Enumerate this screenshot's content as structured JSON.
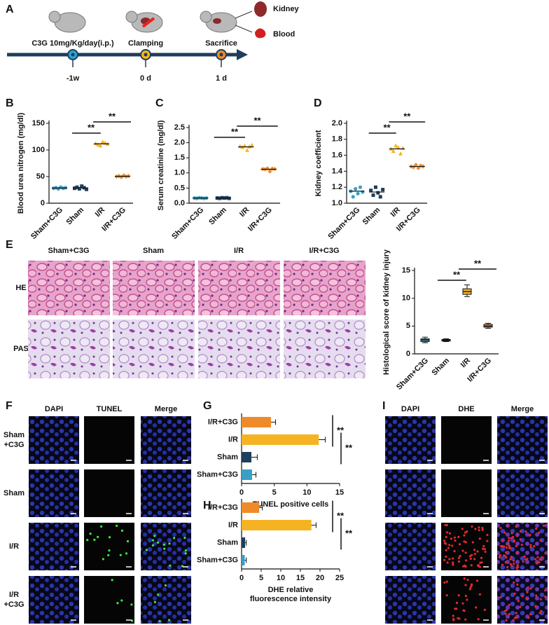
{
  "panel_labels": [
    "A",
    "B",
    "C",
    "D",
    "E",
    "F",
    "G",
    "H",
    "I"
  ],
  "timeline": {
    "steps": [
      {
        "label": "C3G 10mg/Kg/day(i.p.)",
        "time": "-1w"
      },
      {
        "label": "Clamping",
        "time": "0 d"
      },
      {
        "label": "Sacrifice",
        "time": "1 d"
      }
    ],
    "samples": [
      "Kidney",
      "Blood"
    ]
  },
  "histology": {
    "columns": [
      "Sham+C3G",
      "Sham",
      "I/R",
      "I/R+C3G"
    ],
    "rows": [
      "HE",
      "PAS"
    ]
  },
  "tunel_images": {
    "columns": [
      "DAPI",
      "TUNEL",
      "Merge"
    ],
    "rows": [
      [
        "Sham",
        "+C3G"
      ],
      [
        "Sham"
      ],
      [
        "I/R"
      ],
      [
        "I/R",
        "+C3G"
      ]
    ]
  },
  "dhe_images": {
    "columns": [
      "DAPI",
      "DHE",
      "Merge"
    ]
  },
  "chart_data": [
    {
      "type": "dot",
      "ylabel": "Blood urea nitrogen (mg/dl)",
      "categories": [
        "Sham+C3G",
        "Sham",
        "I/R",
        "I/R+C3G"
      ],
      "colors": [
        "#3a9fc4",
        "#1e3f5c",
        "#f5b324",
        "#ef8a2b"
      ],
      "points": [
        [
          28,
          29,
          27,
          30,
          28,
          29
        ],
        [
          28,
          30,
          27,
          32,
          29,
          26
        ],
        [
          112,
          110,
          108,
          115,
          113,
          111
        ],
        [
          50,
          51,
          49,
          52,
          50,
          51
        ]
      ],
      "means": [
        28.5,
        28.7,
        111.5,
        50.5
      ],
      "ylim": [
        0,
        150
      ],
      "yticks": [
        0,
        50,
        100,
        150
      ],
      "annotations": [
        "**",
        "**"
      ]
    },
    {
      "type": "dot",
      "ylabel": "Serum creatinine (mg/dl)",
      "categories": [
        "Sham+C3G",
        "Sham",
        "I/R",
        "I/R+C3G"
      ],
      "colors": [
        "#3a9fc4",
        "#1e3f5c",
        "#f5b324",
        "#ef8a2b"
      ],
      "points": [
        [
          0.17,
          0.16,
          0.18,
          0.17,
          0.16,
          0.17
        ],
        [
          0.17,
          0.16,
          0.18,
          0.17,
          0.18,
          0.16
        ],
        [
          1.88,
          1.85,
          1.9,
          1.75,
          1.87,
          1.92
        ],
        [
          1.13,
          1.12,
          1.15,
          1.05,
          1.14,
          1.13
        ]
      ],
      "means": [
        0.17,
        0.17,
        1.86,
        1.12
      ],
      "ylim": [
        0,
        2.5
      ],
      "yticks": [
        {
          "value": 0,
          "label": "0.0"
        },
        0.5,
        {
          "value": 1,
          "label": "1.0"
        },
        1.5,
        {
          "value": 2,
          "label": "2.0"
        },
        2.5
      ],
      "annotations": [
        "**",
        "**"
      ]
    },
    {
      "type": "dot",
      "ylabel": "Kidney coefficient",
      "categories": [
        "Sham+C3G",
        "Sham",
        "I/R",
        "I/R+C3G"
      ],
      "colors": [
        "#3a9fc4",
        "#1e3f5c",
        "#f5b324",
        "#ef8a2b"
      ],
      "points": [
        [
          1.15,
          1.08,
          1.18,
          1.12,
          1.2,
          1.14
        ],
        [
          1.16,
          1.1,
          1.2,
          1.13,
          1.08,
          1.17
        ],
        [
          1.68,
          1.65,
          1.72,
          1.7,
          1.62,
          1.69
        ],
        [
          1.46,
          1.45,
          1.48,
          1.44,
          1.47,
          1.46
        ]
      ],
      "means": [
        1.15,
        1.14,
        1.68,
        1.46
      ],
      "ylim": [
        1.0,
        2.0
      ],
      "yticks": [
        {
          "value": 1,
          "label": "1.0"
        },
        1.2,
        1.4,
        1.6,
        1.8,
        {
          "value": 2,
          "label": "2.0"
        }
      ],
      "annotations": [
        "**",
        "**"
      ]
    },
    {
      "type": "box",
      "ylabel": "Histological score of kidney injury",
      "categories": [
        "Sham+C3G",
        "Sham",
        "I/R",
        "I/R+C3G"
      ],
      "colors": [
        "#3a9fc4",
        "#1e3f5c",
        "#f5b324",
        "#ef8a2b"
      ],
      "boxes": [
        {
          "min": 2.0,
          "q1": 2.2,
          "median": 2.5,
          "q3": 2.7,
          "max": 3.0
        },
        {
          "min": 2.2,
          "q1": 2.3,
          "median": 2.4,
          "q3": 2.6,
          "max": 2.7
        },
        {
          "min": 10.3,
          "q1": 10.7,
          "median": 11.2,
          "q3": 11.7,
          "max": 12.4
        },
        {
          "min": 4.6,
          "q1": 4.8,
          "median": 5.0,
          "q3": 5.3,
          "max": 5.5
        }
      ],
      "ylim": [
        0,
        15
      ],
      "yticks": [
        0,
        5,
        10,
        15
      ],
      "annotations": [
        "**",
        "**"
      ]
    },
    {
      "type": "barh",
      "xlabel": [
        "TUNEL positive cells"
      ],
      "categories": [
        "I/R+C3G",
        "I/R",
        "Sham",
        "Sham+C3G"
      ],
      "colors": [
        "#ef8a2b",
        "#f5b324",
        "#1e3f5c",
        "#3a9fc4"
      ],
      "values": [
        4.5,
        11.8,
        1.5,
        1.6
      ],
      "errors": [
        0.7,
        1.0,
        0.9,
        0.6
      ],
      "xlim": [
        0,
        15
      ],
      "xticks": [
        0,
        5,
        10,
        15
      ],
      "annotations": [
        "**",
        "**"
      ]
    },
    {
      "type": "barh",
      "xlabel": [
        "DHE relative",
        "fluorescence intensity"
      ],
      "categories": [
        "I/R+C3G",
        "I/R",
        "Sham",
        "Sham+C3G"
      ],
      "colors": [
        "#ef8a2b",
        "#f5b324",
        "#1e3f5c",
        "#3a9fc4"
      ],
      "values": [
        4.5,
        17.8,
        0.9,
        0.8
      ],
      "errors": [
        0.8,
        1.2,
        0.3,
        0.4
      ],
      "xlim": [
        0,
        25
      ],
      "xticks": [
        0,
        5,
        10,
        15,
        20,
        25
      ],
      "annotations": [
        "**",
        "**"
      ]
    }
  ]
}
